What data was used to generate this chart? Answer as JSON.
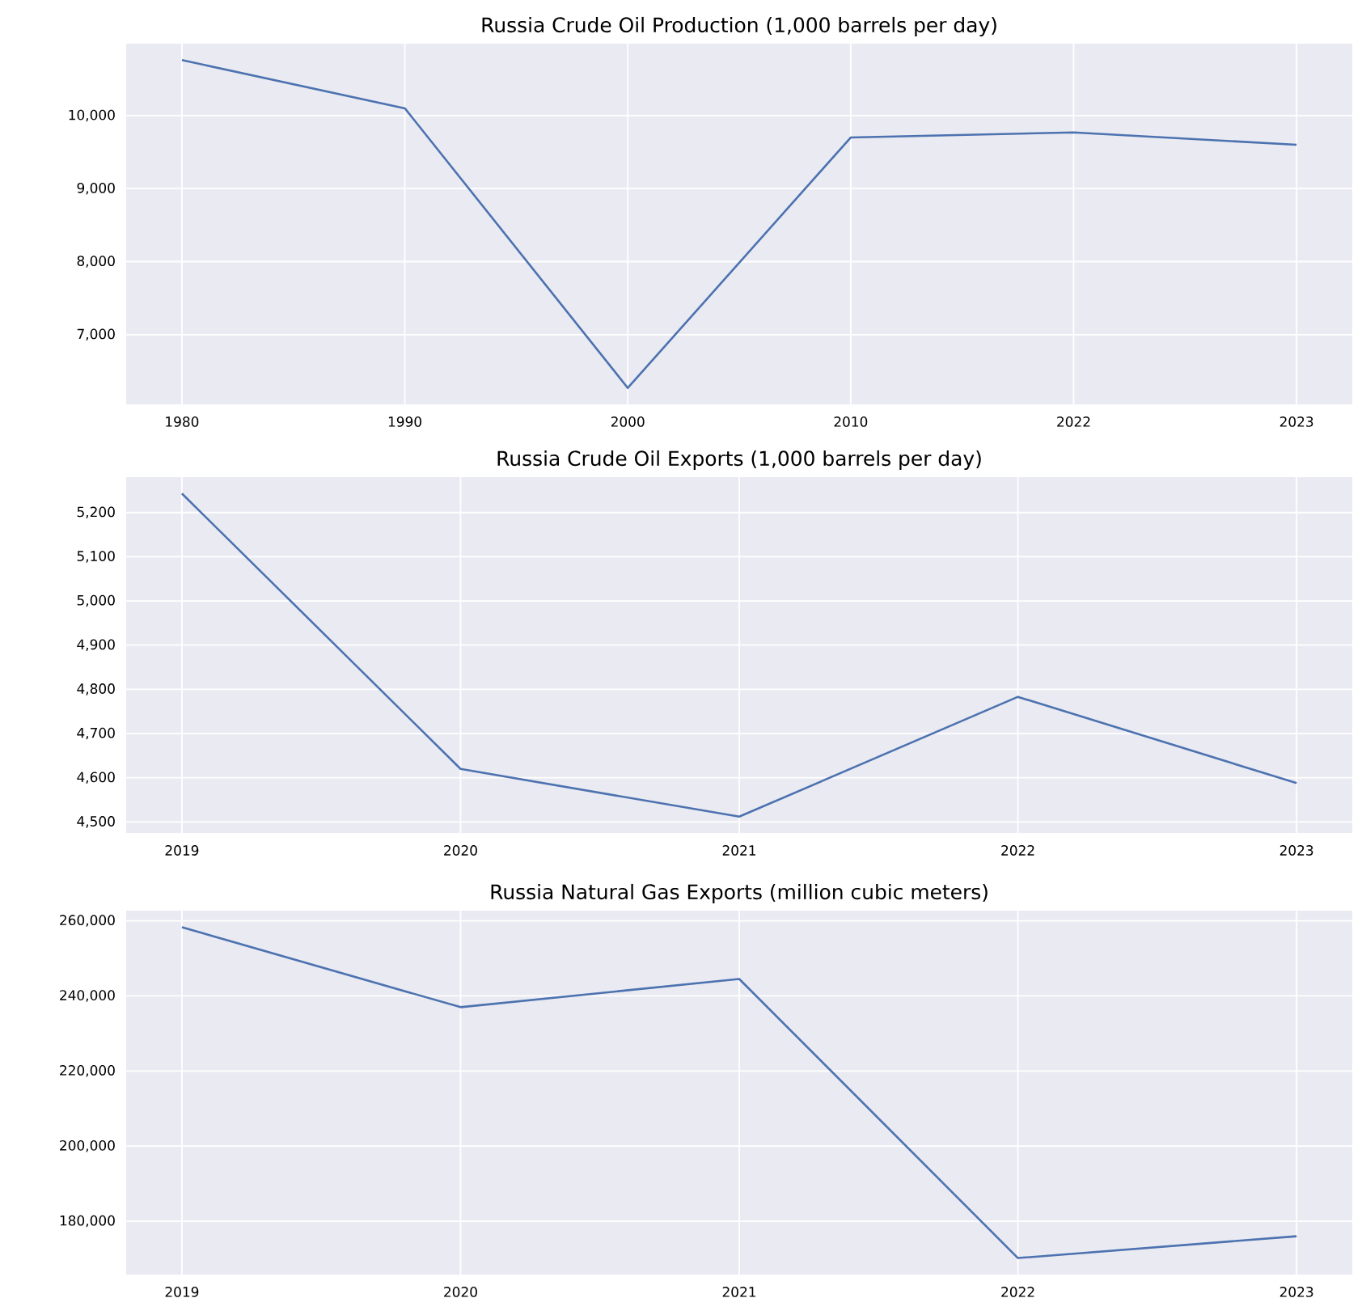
{
  "chart_data": [
    {
      "type": "line",
      "title": "Russia Crude Oil Production (1,000 barrels per day)",
      "categories": [
        "1980",
        "1990",
        "2000",
        "2010",
        "2022",
        "2023"
      ],
      "series": [
        {
          "color": "#4c72b0",
          "values": [
            10760,
            10100,
            6270,
            9700,
            9770,
            9600
          ]
        }
      ],
      "ylim": [
        6045,
        10985
      ],
      "yticks": [
        {
          "value": 7000,
          "label": "7,000"
        },
        {
          "value": 8000,
          "label": "8,000"
        },
        {
          "value": 9000,
          "label": "9,000"
        },
        {
          "value": 10000,
          "label": "10,000"
        }
      ],
      "grid": true
    },
    {
      "type": "line",
      "title": "Russia Crude Oil Exports (1,000 barrels per day)",
      "categories": [
        "2019",
        "2020",
        "2021",
        "2022",
        "2023"
      ],
      "series": [
        {
          "color": "#4c72b0",
          "values": [
            5243,
            4620,
            4512,
            4783,
            4588
          ]
        }
      ],
      "ylim": [
        4475,
        5280
      ],
      "yticks": [
        {
          "value": 4500,
          "label": "4,500"
        },
        {
          "value": 4600,
          "label": "4,600"
        },
        {
          "value": 4700,
          "label": "4,700"
        },
        {
          "value": 4800,
          "label": "4,800"
        },
        {
          "value": 4900,
          "label": "4,900"
        },
        {
          "value": 5000,
          "label": "5,000"
        },
        {
          "value": 5100,
          "label": "5,100"
        },
        {
          "value": 5200,
          "label": "5,200"
        }
      ],
      "grid": true
    },
    {
      "type": "line",
      "title": "Russia Natural Gas Exports (million cubic meters)",
      "categories": [
        "2019",
        "2020",
        "2021",
        "2022",
        "2023"
      ],
      "series": [
        {
          "color": "#4c72b0",
          "values": [
            258300,
            237000,
            244500,
            170200,
            176000
          ]
        }
      ],
      "ylim": [
        165800,
        262700
      ],
      "yticks": [
        {
          "value": 180000,
          "label": "180,000"
        },
        {
          "value": 200000,
          "label": "200,000"
        },
        {
          "value": 220000,
          "label": "220,000"
        },
        {
          "value": 240000,
          "label": "240,000"
        },
        {
          "value": 260000,
          "label": "260,000"
        }
      ],
      "grid": true
    }
  ]
}
